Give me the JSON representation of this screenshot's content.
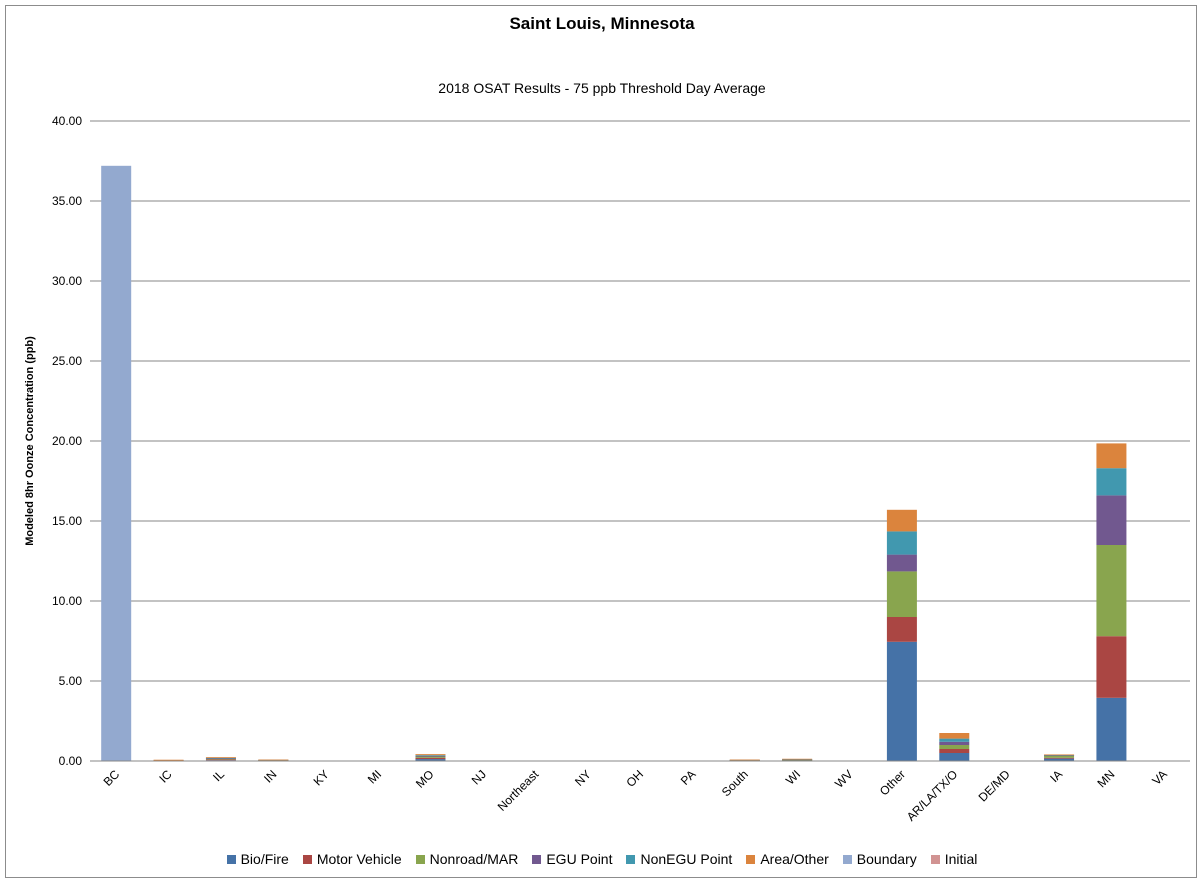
{
  "chart_data": {
    "type": "bar",
    "stacked": true,
    "title": "Saint Louis, Minnesota",
    "subtitle": "2018 OSAT Results - 75 ppb Threshold Day Average",
    "ylabel": "Modeled 8hr Oonze Concentration (ppb)",
    "xlabel": "",
    "ylim": [
      0,
      40
    ],
    "ytick_labels": [
      "0.00",
      "5.00",
      "10.00",
      "15.00",
      "20.00",
      "25.00",
      "30.00",
      "35.00",
      "40.00"
    ],
    "grid": true,
    "legend_position": "bottom",
    "categories": [
      "BC",
      "IC",
      "IL",
      "IN",
      "KY",
      "MI",
      "MO",
      "NJ",
      "Northeast",
      "NY",
      "OH",
      "PA",
      "South",
      "WI",
      "WV",
      "Other",
      "AR/LA/TX/O",
      "DE/MD",
      "IA",
      "MN",
      "VA"
    ],
    "series": [
      {
        "name": "Bio/Fire",
        "color": "#4572A7",
        "values": [
          0,
          0,
          0.05,
          0.02,
          0,
          0,
          0.12,
          0,
          0,
          0,
          0,
          0,
          0.02,
          0.03,
          0,
          7.45,
          0.5,
          0,
          0.15,
          3.95,
          0
        ]
      },
      {
        "name": "Motor Vehicle",
        "color": "#AA4643",
        "values": [
          0,
          0.02,
          0.05,
          0.02,
          0,
          0,
          0.08,
          0,
          0,
          0,
          0,
          0,
          0.02,
          0.03,
          0,
          1.55,
          0.25,
          0,
          0.05,
          3.85,
          0
        ]
      },
      {
        "name": "Nonroad/MAR",
        "color": "#89A54E",
        "values": [
          0,
          0.02,
          0.05,
          0.02,
          0,
          0,
          0.08,
          0,
          0,
          0,
          0,
          0,
          0.02,
          0.02,
          0,
          2.85,
          0.25,
          0,
          0.15,
          5.7,
          0
        ]
      },
      {
        "name": "EGU Point",
        "color": "#71588F",
        "values": [
          0,
          0.01,
          0.03,
          0.01,
          0,
          0,
          0.04,
          0,
          0,
          0,
          0,
          0,
          0.01,
          0.02,
          0,
          1.05,
          0.2,
          0,
          0.02,
          3.1,
          0
        ]
      },
      {
        "name": "NonEGU Point",
        "color": "#4198AF",
        "values": [
          0,
          0.01,
          0.03,
          0.01,
          0,
          0,
          0.04,
          0,
          0,
          0,
          0,
          0,
          0.01,
          0.02,
          0,
          1.45,
          0.2,
          0,
          0.02,
          1.7,
          0
        ]
      },
      {
        "name": "Area/Other",
        "color": "#DB843D",
        "values": [
          0,
          0.02,
          0.03,
          0.01,
          0,
          0,
          0.07,
          0,
          0,
          0,
          0,
          0,
          0.01,
          0.02,
          0,
          1.35,
          0.35,
          0,
          0.02,
          1.55,
          0
        ]
      },
      {
        "name": "Boundary",
        "color": "#93A9CF",
        "values": [
          37.2,
          0,
          0,
          0,
          0,
          0,
          0,
          0,
          0,
          0,
          0,
          0,
          0,
          0,
          0,
          0,
          0,
          0,
          0,
          0,
          0
        ]
      },
      {
        "name": "Initial",
        "color": "#D19392",
        "values": [
          0,
          0,
          0,
          0,
          0,
          0,
          0,
          0,
          0,
          0,
          0,
          0,
          0,
          0,
          0,
          0,
          0,
          0,
          0,
          0,
          0
        ]
      }
    ]
  }
}
